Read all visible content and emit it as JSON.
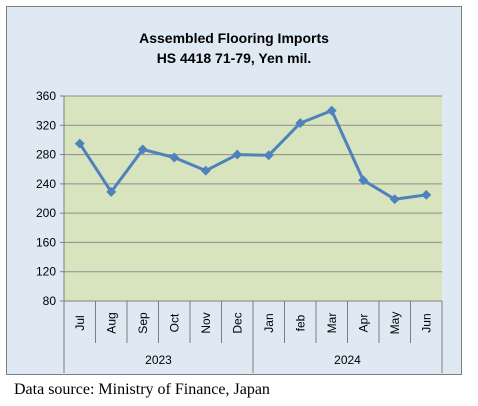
{
  "source_note": "Data source: Ministry of Finance, Japan",
  "colors": {
    "plot_bg": "#d7e4bd",
    "frame_bg": "#dfe9f4",
    "line": "#4f81bd",
    "grid": "#8c8c8c"
  },
  "chart_data": {
    "type": "line",
    "title": "Assembled Flooring Imports",
    "subtitle": "HS 4418 71-79, Yen mil.",
    "xlabel": "",
    "ylabel": "",
    "ylim": [
      80,
      360
    ],
    "yticks": [
      80,
      120,
      160,
      200,
      240,
      280,
      320,
      360
    ],
    "grid": true,
    "legend": "none",
    "categories": [
      "Jul",
      "Aug",
      "Sep",
      "Oct",
      "Nov",
      "Dec",
      "Jan",
      "feb",
      "Mar",
      "Apr",
      "May",
      "Jun"
    ],
    "groups": [
      {
        "label": "2023",
        "span": 6
      },
      {
        "label": "2024",
        "span": 6
      }
    ],
    "series": [
      {
        "values": [
          295,
          229,
          287,
          276,
          258,
          280,
          279,
          323,
          340,
          245,
          219,
          225
        ]
      }
    ]
  }
}
